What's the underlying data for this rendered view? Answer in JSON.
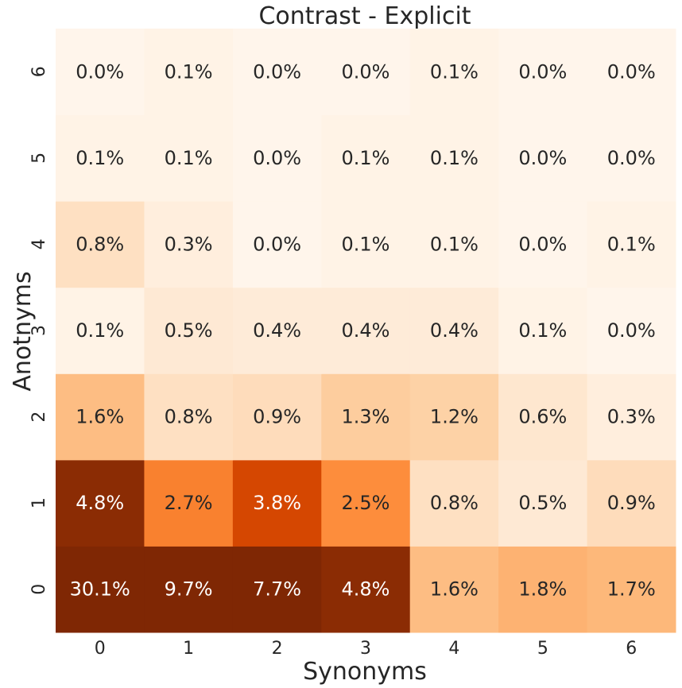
{
  "chart_data": {
    "type": "heatmap",
    "title": "Contrast - Explicit",
    "xlabel": "Synonyms",
    "ylabel": "Anotnyms",
    "x_categories": [
      "0",
      "1",
      "2",
      "3",
      "4",
      "5",
      "6"
    ],
    "y_categories": [
      "0",
      "1",
      "2",
      "3",
      "4",
      "5",
      "6"
    ],
    "values": [
      [
        30.1,
        9.7,
        7.7,
        4.8,
        1.6,
        1.8,
        1.7
      ],
      [
        4.8,
        2.7,
        3.8,
        2.5,
        0.8,
        0.5,
        0.9
      ],
      [
        1.6,
        0.8,
        0.9,
        1.3,
        1.2,
        0.6,
        0.3
      ],
      [
        0.1,
        0.5,
        0.4,
        0.4,
        0.4,
        0.1,
        0.0
      ],
      [
        0.8,
        0.3,
        0.0,
        0.1,
        0.1,
        0.0,
        0.1
      ],
      [
        0.1,
        0.1,
        0.0,
        0.1,
        0.1,
        0.0,
        0.0
      ],
      [
        0.0,
        0.1,
        0.0,
        0.0,
        0.1,
        0.0,
        0.0
      ]
    ],
    "labels": [
      [
        "30.1%",
        "9.7%",
        "7.7%",
        "4.8%",
        "1.6%",
        "1.8%",
        "1.7%"
      ],
      [
        "4.8%",
        "2.7%",
        "3.8%",
        "2.5%",
        "0.8%",
        "0.5%",
        "0.9%"
      ],
      [
        "1.6%",
        "0.8%",
        "0.9%",
        "1.3%",
        "1.2%",
        "0.6%",
        "0.3%"
      ],
      [
        "0.1%",
        "0.5%",
        "0.4%",
        "0.4%",
        "0.4%",
        "0.1%",
        "0.0%"
      ],
      [
        "0.8%",
        "0.3%",
        "0.0%",
        "0.1%",
        "0.1%",
        "0.0%",
        "0.1%"
      ],
      [
        "0.1%",
        "0.1%",
        "0.0%",
        "0.1%",
        "0.1%",
        "0.0%",
        "0.0%"
      ],
      [
        "0.0%",
        "0.1%",
        "0.0%",
        "0.0%",
        "0.1%",
        "0.0%",
        "0.0%"
      ]
    ],
    "colormap": "Oranges",
    "color_range": [
      0,
      5
    ],
    "colorbar": false,
    "grid": false,
    "legend": "none",
    "text_color_dark": "#262626",
    "text_color_light": "#ffffff"
  }
}
